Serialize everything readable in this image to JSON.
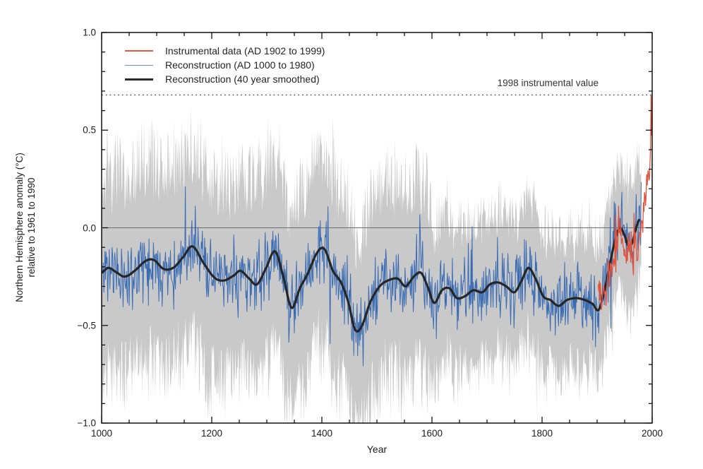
{
  "figure": {
    "background": "#ffffff"
  },
  "chart_data": {
    "type": "line",
    "title": "",
    "xlabel": "Year",
    "ylabel_line1": "Northern Hemisphere anomaly (°C)",
    "ylabel_line2": "relative to 1961 to 1990",
    "xlim": [
      1000,
      2000
    ],
    "ylim": [
      -1.0,
      1.0
    ],
    "grid": false,
    "x_major_ticks": [
      1000,
      1200,
      1400,
      1600,
      1800,
      2000
    ],
    "x_tick_labels": [
      "1000",
      "1200",
      "1400",
      "1600",
      "1800",
      "2000"
    ],
    "x_minor_step": 50,
    "y_major_ticks": [
      1.0,
      0.5,
      0.0,
      -0.5,
      -1.0
    ],
    "y_tick_labels": [
      "1.0",
      "0.5",
      "0.0",
      "−0.5",
      "−1.0"
    ],
    "y_minor_step": 0.1,
    "zero_line": {
      "y": 0.0,
      "color": "#6e6e6e"
    },
    "annotation": {
      "text": "1998 instrumental value",
      "y": 0.68,
      "line_style": "dotted",
      "line_color": "#404040"
    },
    "axis_color": "#000000",
    "legend": {
      "position": "top-left",
      "entries": [
        {
          "label": "Instrumental data (AD 1902 to 1999)",
          "color": "#E25B43",
          "thickness": 2.4
        },
        {
          "label": "Reconstruction (AD 1000 to 1980)",
          "color": "#6A8FC7",
          "thickness": 1.6
        },
        {
          "label": "Reconstruction (40 year smoothed)",
          "color": "#2B2B2B",
          "thickness": 3.6
        }
      ]
    },
    "series": [
      {
        "name": "uncertainty_band",
        "type": "band",
        "color": "#C9C9C9",
        "from": 1000,
        "to": 1980,
        "base_keypoints": [
          [
            1000,
            0.34
          ],
          [
            1593,
            0.34
          ],
          [
            1601,
            0.27
          ],
          [
            1800,
            0.25
          ],
          [
            1900,
            0.23
          ],
          [
            1980,
            0.22
          ]
        ],
        "amp_keypoints": [
          [
            1000,
            0.37
          ],
          [
            1593,
            0.37
          ],
          [
            1601,
            0.25
          ],
          [
            1800,
            0.24
          ],
          [
            1900,
            0.22
          ],
          [
            1980,
            0.2
          ]
        ],
        "center_jitter": 0.03,
        "seed": 7
      },
      {
        "name": "reconstruction_annual",
        "type": "noisy_line",
        "color": "#3A6CB4",
        "stroke_width": 1.0,
        "from": 1000,
        "to": 1980,
        "noise_sd": 0.085,
        "spike_prob": 0.04,
        "seed": 11
      },
      {
        "name": "reconstruction_smoothed",
        "type": "smooth_line",
        "color": "#262626",
        "stroke_width": 3.2,
        "from": 1000,
        "to": 1976,
        "keypoints": [
          [
            1000,
            -0.23
          ],
          [
            1012,
            -0.205
          ],
          [
            1028,
            -0.23
          ],
          [
            1042,
            -0.25
          ],
          [
            1060,
            -0.22
          ],
          [
            1080,
            -0.17
          ],
          [
            1095,
            -0.165
          ],
          [
            1112,
            -0.21
          ],
          [
            1130,
            -0.205
          ],
          [
            1148,
            -0.15
          ],
          [
            1165,
            -0.095
          ],
          [
            1185,
            -0.18
          ],
          [
            1205,
            -0.255
          ],
          [
            1222,
            -0.27
          ],
          [
            1240,
            -0.245
          ],
          [
            1252,
            -0.22
          ],
          [
            1268,
            -0.26
          ],
          [
            1282,
            -0.29
          ],
          [
            1298,
            -0.21
          ],
          [
            1315,
            -0.12
          ],
          [
            1330,
            -0.25
          ],
          [
            1345,
            -0.41
          ],
          [
            1360,
            -0.31
          ],
          [
            1375,
            -0.23
          ],
          [
            1392,
            -0.125
          ],
          [
            1405,
            -0.11
          ],
          [
            1420,
            -0.22
          ],
          [
            1435,
            -0.28
          ],
          [
            1448,
            -0.38
          ],
          [
            1460,
            -0.52
          ],
          [
            1472,
            -0.505
          ],
          [
            1488,
            -0.38
          ],
          [
            1505,
            -0.3
          ],
          [
            1520,
            -0.27
          ],
          [
            1538,
            -0.26
          ],
          [
            1552,
            -0.3
          ],
          [
            1567,
            -0.25
          ],
          [
            1580,
            -0.23
          ],
          [
            1592,
            -0.3
          ],
          [
            1604,
            -0.385
          ],
          [
            1618,
            -0.32
          ],
          [
            1632,
            -0.31
          ],
          [
            1645,
            -0.36
          ],
          [
            1660,
            -0.35
          ],
          [
            1675,
            -0.32
          ],
          [
            1692,
            -0.33
          ],
          [
            1705,
            -0.29
          ],
          [
            1720,
            -0.28
          ],
          [
            1735,
            -0.3
          ],
          [
            1750,
            -0.33
          ],
          [
            1763,
            -0.27
          ],
          [
            1775,
            -0.205
          ],
          [
            1788,
            -0.26
          ],
          [
            1802,
            -0.35
          ],
          [
            1815,
            -0.37
          ],
          [
            1830,
            -0.4
          ],
          [
            1845,
            -0.37
          ],
          [
            1862,
            -0.36
          ],
          [
            1878,
            -0.37
          ],
          [
            1892,
            -0.39
          ],
          [
            1903,
            -0.42
          ],
          [
            1915,
            -0.3
          ],
          [
            1925,
            -0.16
          ],
          [
            1935,
            -0.04
          ],
          [
            1942,
            0.0
          ],
          [
            1950,
            -0.04
          ],
          [
            1957,
            -0.095
          ],
          [
            1964,
            -0.075
          ],
          [
            1970,
            -0.01
          ],
          [
            1976,
            0.04
          ]
        ]
      },
      {
        "name": "instrumental",
        "type": "noisy_line",
        "color": "#E0533C",
        "stroke_width": 1.3,
        "from": 1902,
        "to": 1999,
        "noise_sd": 0.06,
        "spike_prob": 0.05,
        "seed": 5,
        "peak_year": 1998,
        "peak_value": 0.68,
        "keypoints": [
          [
            1902,
            -0.31
          ],
          [
            1907,
            -0.34
          ],
          [
            1912,
            -0.35
          ],
          [
            1917,
            -0.3
          ],
          [
            1922,
            -0.24
          ],
          [
            1927,
            -0.2
          ],
          [
            1932,
            -0.14
          ],
          [
            1937,
            -0.06
          ],
          [
            1941,
            0.0
          ],
          [
            1945,
            -0.02
          ],
          [
            1950,
            -0.12
          ],
          [
            1955,
            -0.1
          ],
          [
            1960,
            -0.06
          ],
          [
            1964,
            -0.14
          ],
          [
            1968,
            -0.12
          ],
          [
            1972,
            -0.1
          ],
          [
            1976,
            -0.08
          ],
          [
            1980,
            0.02
          ],
          [
            1984,
            0.06
          ],
          [
            1988,
            0.16
          ],
          [
            1991,
            0.22
          ],
          [
            1994,
            0.26
          ],
          [
            1996,
            0.32
          ],
          [
            1997,
            0.4
          ],
          [
            1998,
            0.68
          ],
          [
            1999,
            0.47
          ]
        ]
      }
    ]
  }
}
